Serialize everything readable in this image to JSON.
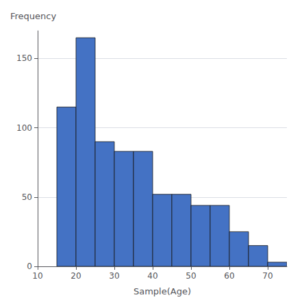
{
  "chart_data": {
    "type": "histogram",
    "bins": [
      15,
      20,
      25,
      30,
      35,
      40,
      45,
      50,
      55,
      60,
      65,
      70,
      75
    ],
    "values": [
      115,
      165,
      90,
      83,
      83,
      52,
      52,
      44,
      44,
      25,
      15,
      3
    ],
    "color": "#4472C4",
    "xlabel": "Sample(Age)",
    "ylabel": "Frequency",
    "xlim": [
      10,
      75
    ],
    "ylim": [
      0,
      170
    ],
    "xticks": [
      10,
      20,
      30,
      40,
      50,
      60,
      70
    ],
    "yticks": [
      0,
      50,
      100,
      150
    ],
    "grid": true
  }
}
